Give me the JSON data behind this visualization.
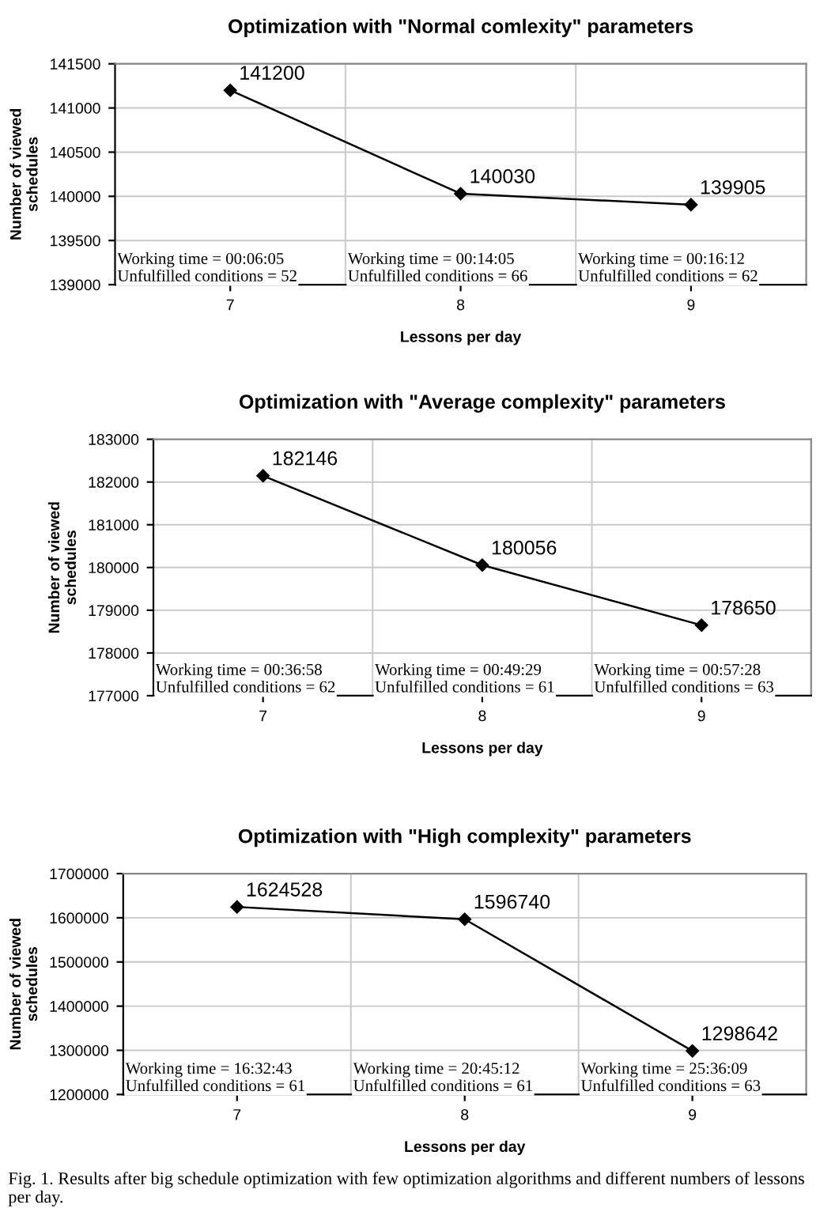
{
  "chart_data": [
    {
      "type": "line",
      "title": "Optimization with \"Normal comlexity\" parameters",
      "xlabel": "Lessons per day",
      "ylabel": "Number of viewed\nschedules",
      "categories": [
        "7",
        "8",
        "9"
      ],
      "series": [
        {
          "color": "#000000",
          "values": [
            141200,
            140030,
            139905
          ]
        }
      ],
      "ylim": [
        139000,
        141500
      ],
      "yticks": [
        139000,
        139500,
        140000,
        140500,
        141000,
        141500
      ],
      "grid": true,
      "marker": "diamond",
      "line_style": "solid",
      "data_labels": true,
      "annotations": [
        "Working time = 00:06:05\nUnfulfilled conditions = 52",
        "Working time = 00:14:05\nUnfulfilled conditions = 66",
        "Working time = 00:16:12\nUnfulfilled conditions = 62"
      ]
    },
    {
      "type": "line",
      "title": "Optimization with \"Average complexity\" parameters",
      "xlabel": "Lessons per day",
      "ylabel": "Number of viewed\nschedules",
      "categories": [
        "7",
        "8",
        "9"
      ],
      "series": [
        {
          "color": "#000000",
          "values": [
            182146,
            180056,
            178650
          ]
        }
      ],
      "ylim": [
        177000,
        183000
      ],
      "yticks": [
        177000,
        178000,
        179000,
        180000,
        181000,
        182000,
        183000
      ],
      "grid": true,
      "marker": "diamond",
      "line_style": "solid",
      "data_labels": true,
      "annotations": [
        "Working time = 00:36:58\nUnfulfilled conditions = 62",
        "Working time = 00:49:29\nUnfulfilled conditions = 61",
        "Working time = 00:57:28\nUnfulfilled conditions = 63"
      ]
    },
    {
      "type": "line",
      "title": "Optimization with \"High complexity\" parameters",
      "xlabel": "Lessons per day",
      "ylabel": "Number of viewed\nschedules",
      "categories": [
        "7",
        "8",
        "9"
      ],
      "series": [
        {
          "color": "#000000",
          "values": [
            1624528,
            1596740,
            1298642
          ]
        }
      ],
      "ylim": [
        1200000,
        1700000
      ],
      "yticks": [
        1200000,
        1300000,
        1400000,
        1500000,
        1600000,
        1700000
      ],
      "grid": true,
      "marker": "diamond",
      "line_style": "solid",
      "data_labels": true,
      "annotations": [
        "Working time = 16:32:43\nUnfulfilled conditions = 61",
        "Working time = 20:45:12\nUnfulfilled conditions = 61",
        "Working time = 25:36:09\nUnfulfilled conditions = 63",
        "Fig. 1. Results after big schedule optimization with few optimization algorithms and different numbers of lessons per day."
      ]
    }
  ]
}
